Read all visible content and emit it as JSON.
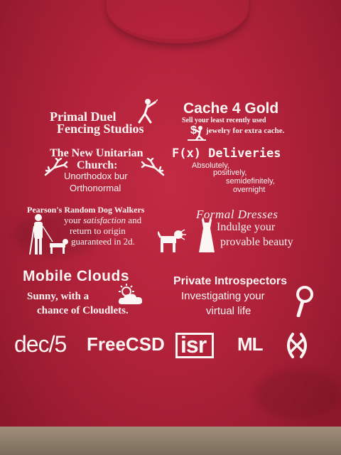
{
  "ads": {
    "fencing": {
      "line1": "Primal Duel",
      "line2": "Fencing Studios"
    },
    "gold": {
      "title": "Cache 4 Gold",
      "line1": "Sell your least recently used",
      "dollar": "$",
      "line2": "jewelry for extra cache."
    },
    "church": {
      "line1": "The New Unitarian",
      "line2": "Church:",
      "line3": "Unorthodox bur",
      "line4": "Orthonormal"
    },
    "deliveries": {
      "title": "F(x) Deliveries",
      "l1": "Absolutely,",
      "l2": "positively,",
      "l3": "semidefinitely,",
      "l4": "overnight"
    },
    "dogs": {
      "title": "Pearson's Random Dog Walkers",
      "l1a": "your ",
      "l1b": "satisfaction",
      "l1c": " and",
      "l2": "return to origin",
      "l3": "guaranteed in 2d."
    },
    "dresses": {
      "title": "Formal Dresses",
      "l1": "Indulge your",
      "l2": "provable beauty"
    },
    "clouds": {
      "title": "Mobile Clouds",
      "l1": "Sunny, with a",
      "l2": "chance of Cloudlets."
    },
    "detectives": {
      "title": "Private Introspectors",
      "l1": "Investigating your",
      "l2": "virtual life"
    }
  },
  "logos": {
    "dec": "dec/5",
    "freecsd": "FreeCSD",
    "isr": "isr",
    "ml": "ML"
  },
  "colors": {
    "shirt": "#b1223a",
    "print": "#fbf5f4"
  },
  "icons": [
    "fencer-icon",
    "digging-figure-icon",
    "fractal-branch-icon",
    "blind-walker-icon",
    "dog-icon",
    "dress-icon",
    "sun-cloud-icon",
    "magnifier-icon",
    "hx-logo-icon"
  ]
}
